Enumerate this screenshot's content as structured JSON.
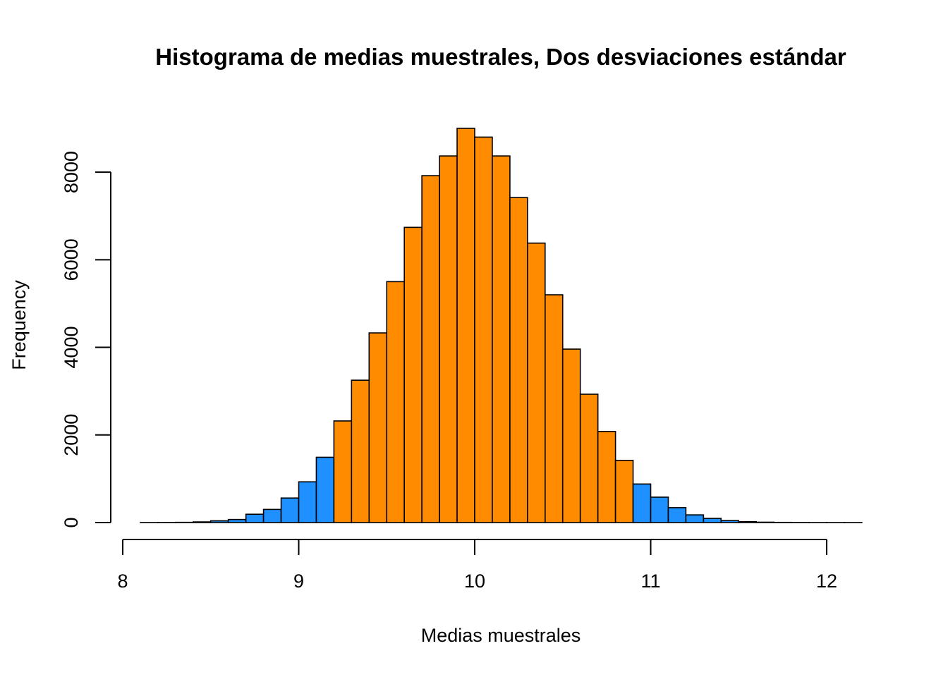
{
  "chart_data": {
    "type": "bar",
    "title": "Histograma de medias muestrales, Dos desviaciones estándar",
    "xlabel": "Medias muestrales",
    "ylabel": "Frequency",
    "xlim": [
      8,
      12.2
    ],
    "ylim": [
      0,
      9000
    ],
    "x_ticks": [
      8,
      9,
      10,
      11,
      12
    ],
    "x_tick_labels": [
      "8",
      "9",
      "10",
      "11",
      "12"
    ],
    "y_ticks": [
      0,
      2000,
      4000,
      6000,
      8000
    ],
    "y_tick_labels": [
      "0",
      "2000",
      "4000",
      "6000",
      "8000"
    ],
    "bin_width": 0.1,
    "bin_starts": [
      8.1,
      8.2,
      8.3,
      8.4,
      8.5,
      8.6,
      8.7,
      8.8,
      8.9,
      9.0,
      9.1,
      9.2,
      9.3,
      9.4,
      9.5,
      9.6,
      9.7,
      9.8,
      9.9,
      10.0,
      10.1,
      10.2,
      10.3,
      10.4,
      10.5,
      10.6,
      10.7,
      10.8,
      10.9,
      11.0,
      11.1,
      11.2,
      11.3,
      11.4,
      11.5,
      11.6,
      11.7,
      11.8,
      11.9,
      12.0,
      12.1
    ],
    "values": [
      1,
      2,
      5,
      15,
      40,
      70,
      190,
      300,
      560,
      930,
      1490,
      2320,
      3250,
      4330,
      5500,
      6740,
      7920,
      8370,
      9000,
      8800,
      8370,
      7420,
      6380,
      5200,
      3960,
      2930,
      2080,
      1420,
      880,
      580,
      340,
      175,
      95,
      45,
      20,
      8,
      4,
      2,
      1,
      1,
      1
    ],
    "colors": [
      "#1E90FF",
      "#1E90FF",
      "#1E90FF",
      "#1E90FF",
      "#1E90FF",
      "#1E90FF",
      "#1E90FF",
      "#1E90FF",
      "#1E90FF",
      "#1E90FF",
      "#1E90FF",
      "#FF8C00",
      "#FF8C00",
      "#FF8C00",
      "#FF8C00",
      "#FF8C00",
      "#FF8C00",
      "#FF8C00",
      "#FF8C00",
      "#FF8C00",
      "#FF8C00",
      "#FF8C00",
      "#FF8C00",
      "#FF8C00",
      "#FF8C00",
      "#FF8C00",
      "#FF8C00",
      "#FF8C00",
      "#1E90FF",
      "#1E90FF",
      "#1E90FF",
      "#1E90FF",
      "#1E90FF",
      "#1E90FF",
      "#1E90FF",
      "#1E90FF",
      "#1E90FF",
      "#1E90FF",
      "#1E90FF",
      "#1E90FF",
      "#1E90FF"
    ],
    "palette": {
      "tails": "#1E90FF",
      "center": "#FF8C00",
      "outline": "#000000"
    },
    "grid": false,
    "legend": "none"
  }
}
